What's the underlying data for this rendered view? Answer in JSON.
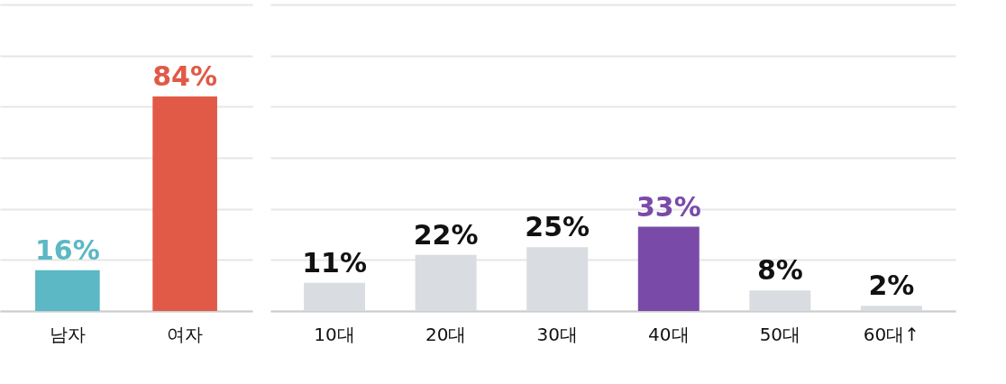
{
  "chart_data": [
    {
      "type": "bar",
      "categories": [
        "남자",
        "여자"
      ],
      "values": [
        16,
        84
      ],
      "colors": [
        "#5bb8c4",
        "#e05a47"
      ],
      "value_labels": [
        "16%",
        "84%"
      ],
      "ylim": [
        0,
        120
      ],
      "yticks": [
        {
          "value": 0,
          "label": null
        },
        {
          "value": 20,
          "label": null
        },
        {
          "value": 40,
          "label": null
        },
        {
          "value": 60,
          "label": null
        },
        {
          "value": 80,
          "label": null
        },
        {
          "value": 100,
          "label": null
        },
        {
          "value": 120,
          "label": null
        }
      ],
      "grid": "y",
      "tick_labels": "x"
    },
    {
      "type": "bar",
      "categories": [
        "10대",
        "20대",
        "30대",
        "40대",
        "50대",
        "60대↑"
      ],
      "values": [
        11,
        22,
        25,
        33,
        8,
        2
      ],
      "colors": [
        "#d9dce0",
        "#d9dce0",
        "#d9dce0",
        "#7a4aa8",
        "#d9dce0",
        "#d9dce0"
      ],
      "value_labels": [
        "11%",
        "22%",
        "25%",
        "33%",
        "8%",
        "2%"
      ],
      "ylim": [
        0,
        120
      ],
      "yticks": [
        {
          "value": 0,
          "label": null
        },
        {
          "value": 20,
          "label": null
        },
        {
          "value": 40,
          "label": null
        },
        {
          "value": 60,
          "label": null
        },
        {
          "value": 80,
          "label": null
        },
        {
          "value": 100,
          "label": null
        },
        {
          "value": 120,
          "label": null
        }
      ],
      "grid": "y",
      "tick_labels": "x"
    }
  ]
}
